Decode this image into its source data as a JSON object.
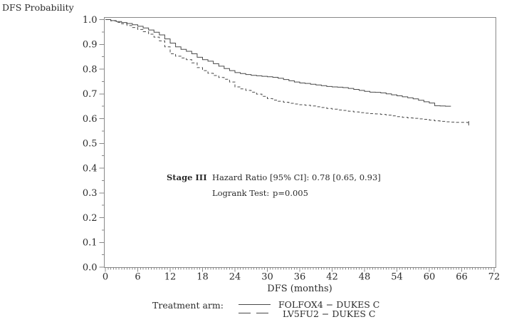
{
  "page": {
    "background": "#ffffff"
  },
  "chart_data": {
    "type": "line",
    "subtype": "kaplan-meier-step",
    "title": "",
    "y_axis_title": "DFS Probability",
    "x_axis_title": "DFS (months)",
    "xlim": [
      0,
      72
    ],
    "ylim": [
      0.0,
      1.0
    ],
    "grid": false,
    "frame": true,
    "x_ticks": [
      0,
      6,
      12,
      18,
      24,
      30,
      36,
      42,
      48,
      54,
      60,
      66,
      72
    ],
    "x_minor_step": 0.5,
    "y_ticks": [
      [
        "1.0",
        1.0
      ],
      [
        "0.9",
        0.9
      ],
      [
        "0.8",
        0.8
      ],
      [
        "0.7",
        0.7
      ],
      [
        "0.6",
        0.6
      ],
      [
        "0.5",
        0.5
      ],
      [
        "0.4",
        0.4
      ],
      [
        "0.3",
        0.3
      ],
      [
        "0.2",
        0.2
      ],
      [
        "0.1",
        0.1
      ],
      [
        "0.0",
        0.0
      ]
    ],
    "y_minor_step": 0.05,
    "annotation": {
      "stage_label": "Stage III",
      "hazard_ratio": "Hazard Ratio [95% CI]: 0.78 [0.65, 0.93]",
      "logrank_label": "Logrank Test:",
      "logrank_value": "p=0.005"
    },
    "legend": {
      "position": "bottom",
      "title": "Treatment arm:",
      "entries": [
        {
          "label": "FOLFOX4 − DUKES C",
          "style": "solid"
        },
        {
          "label": "LV5FU2 − DUKES C",
          "style": "dashed"
        }
      ]
    },
    "colors": {
      "curve": "#4a4a4a",
      "axis": "#888888",
      "text": "#2b2b2b",
      "background": "#ffffff"
    },
    "censor_mark": {
      "series": "LV5FU2",
      "t": 67.3,
      "p": 0.584
    },
    "series": [
      {
        "name": "FOLFOX4",
        "style": "solid",
        "points": [
          [
            0,
            1.0
          ],
          [
            1,
            0.996
          ],
          [
            2,
            0.992
          ],
          [
            3,
            0.988
          ],
          [
            4,
            0.984
          ],
          [
            5,
            0.979
          ],
          [
            6,
            0.973
          ],
          [
            7,
            0.966
          ],
          [
            8,
            0.958
          ],
          [
            9,
            0.949
          ],
          [
            10,
            0.938
          ],
          [
            11,
            0.922
          ],
          [
            12,
            0.905
          ],
          [
            13,
            0.89
          ],
          [
            14,
            0.88
          ],
          [
            15,
            0.872
          ],
          [
            16,
            0.862
          ],
          [
            17,
            0.848
          ],
          [
            18,
            0.838
          ],
          [
            19,
            0.832
          ],
          [
            20,
            0.822
          ],
          [
            21,
            0.812
          ],
          [
            22,
            0.802
          ],
          [
            23,
            0.794
          ],
          [
            24,
            0.786
          ],
          [
            25,
            0.782
          ],
          [
            26,
            0.778
          ],
          [
            27,
            0.775
          ],
          [
            28,
            0.773
          ],
          [
            29,
            0.771
          ],
          [
            30,
            0.769
          ],
          [
            31,
            0.767
          ],
          [
            32,
            0.763
          ],
          [
            33,
            0.758
          ],
          [
            34,
            0.753
          ],
          [
            35,
            0.748
          ],
          [
            36,
            0.744
          ],
          [
            37,
            0.742
          ],
          [
            38,
            0.739
          ],
          [
            39,
            0.736
          ],
          [
            40,
            0.733
          ],
          [
            41,
            0.73
          ],
          [
            42,
            0.728
          ],
          [
            43,
            0.727
          ],
          [
            44,
            0.725
          ],
          [
            45,
            0.722
          ],
          [
            46,
            0.718
          ],
          [
            47,
            0.714
          ],
          [
            48,
            0.71
          ],
          [
            49,
            0.707
          ],
          [
            50,
            0.706
          ],
          [
            51,
            0.704
          ],
          [
            52,
            0.7
          ],
          [
            53,
            0.696
          ],
          [
            54,
            0.692
          ],
          [
            55,
            0.688
          ],
          [
            56,
            0.684
          ],
          [
            57,
            0.68
          ],
          [
            58,
            0.674
          ],
          [
            59,
            0.668
          ],
          [
            60,
            0.663
          ],
          [
            61,
            0.652
          ],
          [
            62,
            0.651
          ],
          [
            63,
            0.65
          ],
          [
            64,
            0.65
          ]
        ]
      },
      {
        "name": "LV5FU2",
        "style": "dashed",
        "points": [
          [
            0,
            1.0
          ],
          [
            1,
            0.995
          ],
          [
            2,
            0.989
          ],
          [
            3,
            0.983
          ],
          [
            4,
            0.976
          ],
          [
            5,
            0.968
          ],
          [
            6,
            0.96
          ],
          [
            7,
            0.951
          ],
          [
            8,
            0.941
          ],
          [
            9,
            0.929
          ],
          [
            10,
            0.914
          ],
          [
            11,
            0.89
          ],
          [
            12,
            0.862
          ],
          [
            13,
            0.852
          ],
          [
            14,
            0.845
          ],
          [
            15,
            0.838
          ],
          [
            16,
            0.825
          ],
          [
            17,
            0.806
          ],
          [
            18,
            0.794
          ],
          [
            19,
            0.783
          ],
          [
            20,
            0.774
          ],
          [
            21,
            0.766
          ],
          [
            22,
            0.759
          ],
          [
            23,
            0.748
          ],
          [
            24,
            0.728
          ],
          [
            25,
            0.72
          ],
          [
            26,
            0.714
          ],
          [
            27,
            0.707
          ],
          [
            28,
            0.699
          ],
          [
            29,
            0.69
          ],
          [
            30,
            0.681
          ],
          [
            31,
            0.675
          ],
          [
            32,
            0.67
          ],
          [
            33,
            0.666
          ],
          [
            34,
            0.662
          ],
          [
            35,
            0.659
          ],
          [
            36,
            0.656
          ],
          [
            37,
            0.654
          ],
          [
            38,
            0.651
          ],
          [
            39,
            0.648
          ],
          [
            40,
            0.645
          ],
          [
            41,
            0.641
          ],
          [
            42,
            0.638
          ],
          [
            43,
            0.635
          ],
          [
            44,
            0.633
          ],
          [
            45,
            0.63
          ],
          [
            46,
            0.627
          ],
          [
            47,
            0.624
          ],
          [
            48,
            0.622
          ],
          [
            49,
            0.62
          ],
          [
            50,
            0.619
          ],
          [
            51,
            0.617
          ],
          [
            52,
            0.614
          ],
          [
            53,
            0.611
          ],
          [
            54,
            0.608
          ],
          [
            55,
            0.605
          ],
          [
            56,
            0.603
          ],
          [
            57,
            0.601
          ],
          [
            58,
            0.599
          ],
          [
            59,
            0.597
          ],
          [
            60,
            0.594
          ],
          [
            61,
            0.591
          ],
          [
            62,
            0.589
          ],
          [
            63,
            0.587
          ],
          [
            64,
            0.586
          ],
          [
            65,
            0.585
          ],
          [
            66,
            0.585
          ],
          [
            67,
            0.584
          ],
          [
            67.5,
            0.584
          ]
        ]
      }
    ]
  }
}
